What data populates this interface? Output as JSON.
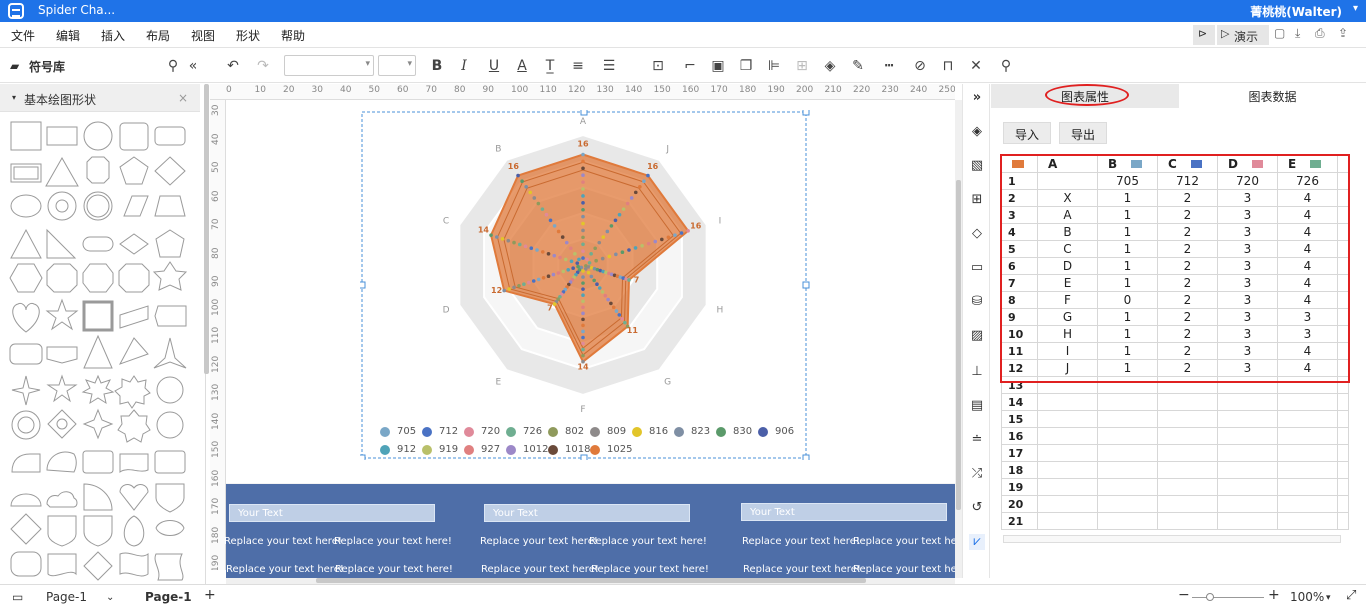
{
  "app": {
    "title": "Spider Cha...",
    "user": "菁桃桃(Walter)"
  },
  "menu": [
    "文件",
    "编辑",
    "插入",
    "布局",
    "视图",
    "形状",
    "帮助"
  ],
  "menu_right": {
    "present_label": "演示"
  },
  "toolbar": {
    "library_label": "符号库"
  },
  "left_panel": {
    "category": "基本绘图形状"
  },
  "ruler_top": [
    "0",
    "10",
    "20",
    "30",
    "40",
    "50",
    "60",
    "70",
    "80",
    "90",
    "100",
    "110",
    "120",
    "130",
    "140",
    "150",
    "160",
    "170",
    "180",
    "190",
    "200",
    "210",
    "220",
    "230",
    "240",
    "250",
    "260",
    "270"
  ],
  "ruler_left": [
    "30",
    "40",
    "50",
    "60",
    "70",
    "80",
    "90",
    "100",
    "110",
    "120",
    "130",
    "140",
    "150",
    "160",
    "170",
    "180",
    "190"
  ],
  "chart_data": {
    "type": "radar",
    "axes": [
      "A",
      "J",
      "I",
      "H",
      "G",
      "F",
      "E",
      "D",
      "C",
      "B"
    ],
    "series": [
      {
        "name": "705",
        "values": [
          16,
          16,
          16,
          16,
          16,
          16,
          16,
          16,
          16,
          16
        ],
        "color": "#7aa7c7"
      },
      {
        "name": "1025",
        "values": [
          16,
          16,
          16,
          7,
          11,
          14,
          7,
          12,
          14,
          16
        ],
        "color": "#e07a3b"
      }
    ],
    "value_labels": [
      "16",
      "15",
      "14",
      "13",
      "12",
      "11",
      "10",
      "9",
      "8",
      "7",
      "6",
      "5"
    ],
    "legend": [
      {
        "name": "705",
        "color": "#7aa7c7"
      },
      {
        "name": "712",
        "color": "#4a72c4"
      },
      {
        "name": "720",
        "color": "#e08a9a"
      },
      {
        "name": "726",
        "color": "#6fae91"
      },
      {
        "name": "802",
        "color": "#8f9a5c"
      },
      {
        "name": "809",
        "color": "#8e8a8a"
      },
      {
        "name": "816",
        "color": "#e2c52a"
      },
      {
        "name": "823",
        "color": "#7f8fa4"
      },
      {
        "name": "830",
        "color": "#5b9a6a"
      },
      {
        "name": "906",
        "color": "#4b5fa8"
      },
      {
        "name": "912",
        "color": "#4fa3b8"
      },
      {
        "name": "919",
        "color": "#b9c06a"
      },
      {
        "name": "927",
        "color": "#e08080"
      },
      {
        "name": "1012",
        "color": "#9c88c8"
      },
      {
        "name": "1018",
        "color": "#6a4a3a"
      },
      {
        "name": "1025",
        "color": "#e07a3b"
      }
    ]
  },
  "blue_panel": {
    "your_text": [
      "Your Text",
      "Your Text",
      "Your Text"
    ],
    "replace_text": "Replace your text here!"
  },
  "right_panel": {
    "tab_properties": "图表属性",
    "tab_data": "图表数据",
    "import_label": "导入",
    "export_label": "导出",
    "columns": [
      "A",
      "B",
      "C",
      "D",
      "E"
    ],
    "column_colors": [
      "#e07a3b",
      "#7aa7c7",
      "#4a72c4",
      "#e08a9a",
      "#6fae91"
    ],
    "rows": [
      [
        "",
        "705",
        "712",
        "720",
        "726"
      ],
      [
        "X",
        "1",
        "2",
        "3",
        "4"
      ],
      [
        "A",
        "1",
        "2",
        "3",
        "4"
      ],
      [
        "B",
        "1",
        "2",
        "3",
        "4"
      ],
      [
        "C",
        "1",
        "2",
        "3",
        "4"
      ],
      [
        "D",
        "1",
        "2",
        "3",
        "4"
      ],
      [
        "E",
        "1",
        "2",
        "3",
        "4"
      ],
      [
        "F",
        "0",
        "2",
        "3",
        "4"
      ],
      [
        "G",
        "1",
        "2",
        "3",
        "3"
      ],
      [
        "H",
        "1",
        "2",
        "3",
        "3"
      ],
      [
        "I",
        "1",
        "2",
        "3",
        "4"
      ],
      [
        "J",
        "1",
        "2",
        "3",
        "4"
      ],
      [
        "",
        "",
        "",
        "",
        ""
      ],
      [
        "",
        "",
        "",
        "",
        ""
      ],
      [
        "",
        "",
        "",
        "",
        ""
      ],
      [
        "",
        "",
        "",
        "",
        ""
      ],
      [
        "",
        "",
        "",
        "",
        ""
      ],
      [
        "",
        "",
        "",
        "",
        ""
      ],
      [
        "",
        "",
        "",
        "",
        ""
      ],
      [
        "",
        "",
        "",
        "",
        ""
      ],
      [
        "",
        "",
        "",
        "",
        ""
      ]
    ]
  },
  "status": {
    "page_tab": "Page-1",
    "active_page": "Page-1",
    "zoom": "100%"
  }
}
